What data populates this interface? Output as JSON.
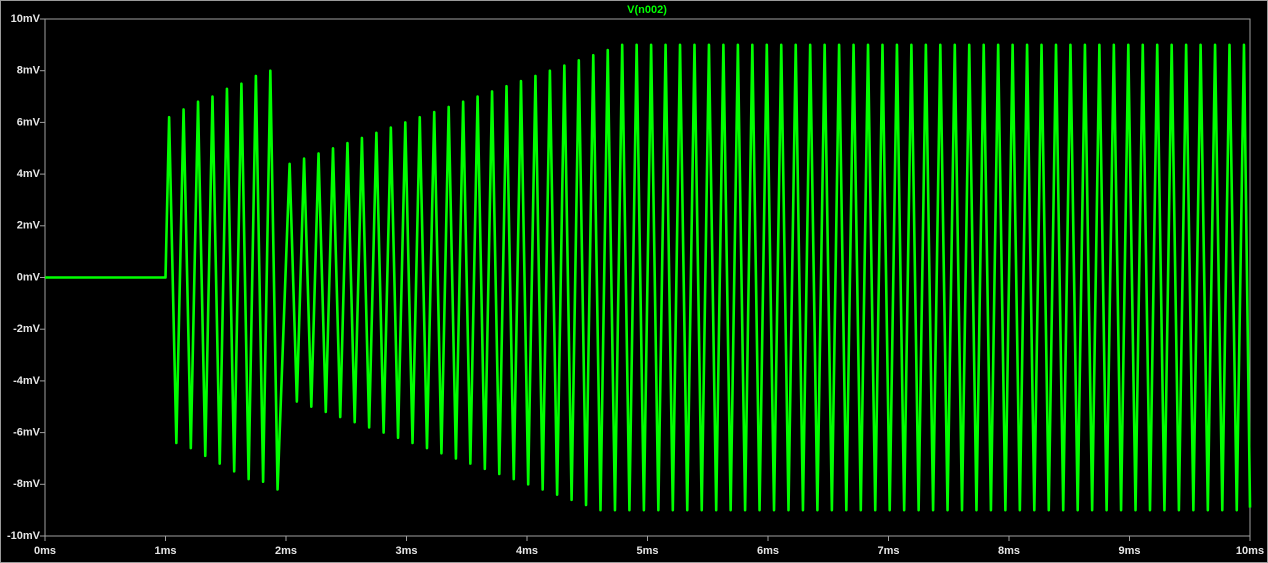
{
  "chart_data": {
    "type": "line",
    "xlim": [
      0,
      10
    ],
    "ylim": [
      -10,
      10
    ],
    "xticks": [
      {
        "value": 0,
        "label": "0ms"
      },
      {
        "value": 1,
        "label": "1ms"
      },
      {
        "value": 2,
        "label": "2ms"
      },
      {
        "value": 3,
        "label": "3ms"
      },
      {
        "value": 4,
        "label": "4ms"
      },
      {
        "value": 5,
        "label": "5ms"
      },
      {
        "value": 6,
        "label": "6ms"
      },
      {
        "value": 7,
        "label": "7ms"
      },
      {
        "value": 8,
        "label": "8ms"
      },
      {
        "value": 9,
        "label": "9ms"
      },
      {
        "value": 10,
        "label": "10ms"
      }
    ],
    "yticks": [
      {
        "value": -10,
        "label": "-10mV"
      },
      {
        "value": -8,
        "label": "-8mV"
      },
      {
        "value": -6,
        "label": "-6mV"
      },
      {
        "value": -4,
        "label": "-4mV"
      },
      {
        "value": -2,
        "label": "-2mV"
      },
      {
        "value": 0,
        "label": "0mV"
      },
      {
        "value": 2,
        "label": "2mV"
      },
      {
        "value": 4,
        "label": "4mV"
      },
      {
        "value": 6,
        "label": "6mV"
      },
      {
        "value": 8,
        "label": "8mV"
      },
      {
        "value": 10,
        "label": "10mV"
      }
    ],
    "x": [
      0,
      1,
      1.03,
      1.09,
      1.15,
      1.21,
      1.27,
      1.33,
      1.39,
      1.45,
      1.51,
      1.57,
      1.63,
      1.69,
      1.75,
      1.81,
      1.87,
      1.93,
      2.03,
      2.09,
      2.15,
      2.21,
      2.27,
      2.33,
      2.39,
      2.45,
      2.51,
      2.57,
      2.63,
      2.69,
      2.75,
      2.81,
      2.87,
      2.93,
      2.99,
      3.05,
      3.11,
      3.17,
      3.23,
      3.29,
      3.35,
      3.41,
      3.47,
      3.53,
      3.59,
      3.65,
      3.71,
      3.77,
      3.83,
      3.89,
      3.95,
      4.01,
      4.07,
      4.13,
      4.19,
      4.25,
      4.31,
      4.37,
      4.43,
      4.49,
      4.55,
      4.61,
      4.67,
      4.73,
      4.79,
      4.85,
      4.91,
      4.97,
      5.03,
      5.09,
      5.15,
      5.21,
      5.27,
      5.33,
      5.39,
      5.45,
      5.51,
      5.57,
      5.63,
      5.69,
      5.75,
      5.81,
      5.87,
      5.93,
      5.99,
      6.05,
      6.11,
      6.17,
      6.23,
      6.29,
      6.35,
      6.41,
      6.47,
      6.53,
      6.59,
      6.65,
      6.71,
      6.77,
      6.83,
      6.89,
      6.95,
      7.01,
      7.07,
      7.13,
      7.19,
      7.25,
      7.31,
      7.37,
      7.43,
      7.49,
      7.55,
      7.61,
      7.67,
      7.73,
      7.79,
      7.85,
      7.91,
      7.97,
      8.03,
      8.09,
      8.15,
      8.21,
      8.27,
      8.33,
      8.39,
      8.45,
      8.51,
      8.57,
      8.63,
      8.69,
      8.75,
      8.81,
      8.87,
      8.93,
      8.99,
      9.05,
      9.11,
      9.17,
      9.23,
      9.29,
      9.35,
      9.41,
      9.47,
      9.53,
      9.59,
      9.65,
      9.71,
      9.77,
      9.83,
      9.89,
      9.95,
      10
    ],
    "series": [
      {
        "name": "V(n002)",
        "color": "#00ff00",
        "values": [
          0,
          0,
          6.2,
          -6.4,
          6.5,
          -6.6,
          6.8,
          -6.9,
          7.0,
          -7.2,
          7.3,
          -7.5,
          7.5,
          -7.8,
          7.8,
          -7.9,
          8.0,
          -8.2,
          4.4,
          -4.8,
          4.6,
          -5.0,
          4.8,
          -5.2,
          5.0,
          -5.4,
          5.2,
          -5.6,
          5.4,
          -5.8,
          5.6,
          -6.0,
          5.8,
          -6.2,
          6.0,
          -6.4,
          6.2,
          -6.6,
          6.4,
          -6.8,
          6.6,
          -7.0,
          6.8,
          -7.2,
          7.0,
          -7.4,
          7.2,
          -7.6,
          7.4,
          -7.8,
          7.6,
          -8.0,
          7.8,
          -8.2,
          8.0,
          -8.4,
          8.2,
          -8.6,
          8.4,
          -8.8,
          8.6,
          -9.0,
          8.8,
          -9.0,
          9.0,
          -9.0,
          9.0,
          -9.0,
          9.0,
          -9.0,
          9.0,
          -9.0,
          9.0,
          -9.0,
          9.0,
          -9.0,
          9.0,
          -9.0,
          9.0,
          -9.0,
          9.0,
          -9.0,
          9.0,
          -9.0,
          9.0,
          -9.0,
          9.0,
          -9.0,
          9.0,
          -9.0,
          9.0,
          -9.0,
          9.0,
          -9.0,
          9.0,
          -9.0,
          9.0,
          -9.0,
          9.0,
          -9.0,
          9.0,
          -9.0,
          9.0,
          -9.0,
          9.0,
          -9.0,
          9.0,
          -9.0,
          9.0,
          -9.0,
          9.0,
          -9.0,
          9.0,
          -9.0,
          9.0,
          -9.0,
          9.0,
          -9.0,
          9.0,
          -9.0,
          9.0,
          -9.0,
          9.0,
          -9.0,
          9.0,
          -9.0,
          9.0,
          -9.0,
          9.0,
          -9.0,
          9.0,
          -9.0,
          9.0,
          -9.0,
          9.0,
          -9.0,
          9.0,
          -9.0,
          9.0,
          -9.0,
          9.0,
          -9.0,
          9.0,
          -9.0,
          9.0,
          -9.0,
          9.0,
          -9.0,
          9.0,
          -9.0,
          9.0,
          -8.9
        ]
      }
    ]
  }
}
